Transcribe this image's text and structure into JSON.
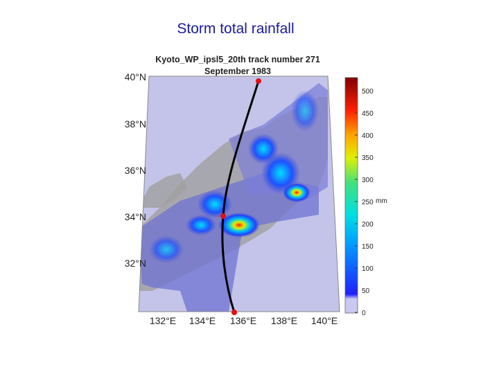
{
  "slide_title": "Storm total rainfall",
  "map": {
    "title_lines": [
      "Kyoto_WP_ipsl5_20th track number 271",
      "September 1983"
    ],
    "lat_labels": [
      "40°N",
      "38°N",
      "36°N",
      "34°N",
      "32°N"
    ],
    "lon_labels": [
      "132°E",
      "134°E",
      "136°E",
      "138°E",
      "140°E"
    ],
    "colorbar": {
      "unit": "mm",
      "ticks": [
        0,
        50,
        100,
        150,
        200,
        250,
        300,
        350,
        400,
        450,
        500
      ]
    }
  }
}
